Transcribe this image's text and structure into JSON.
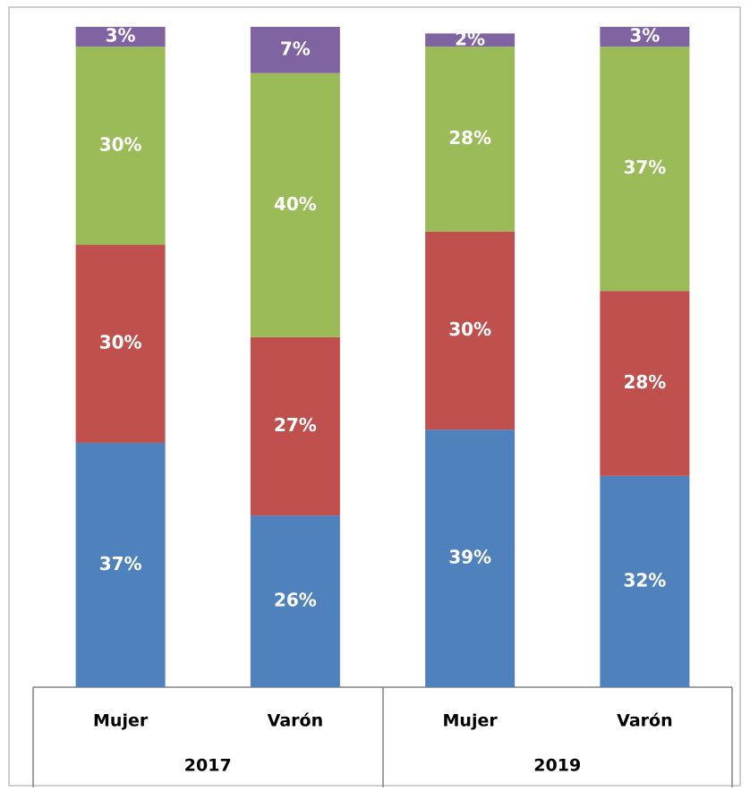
{
  "chart_data": {
    "type": "bar",
    "stacked": true,
    "categories": [
      "Mujer",
      "Varón",
      "Mujer",
      "Varón"
    ],
    "groups": [
      "2017",
      "2019"
    ],
    "ylim": [
      0,
      100
    ],
    "series": [
      {
        "color": "#4f81bd",
        "values": [
          37,
          26,
          39,
          32
        ],
        "value_labels": [
          "37%",
          "26%",
          "39%",
          "32%"
        ]
      },
      {
        "color": "#c0504d",
        "values": [
          30,
          27,
          30,
          28
        ],
        "value_labels": [
          "30%",
          "27%",
          "30%",
          "28%"
        ]
      },
      {
        "color": "#9bbb59",
        "values": [
          30,
          40,
          28,
          37
        ],
        "value_labels": [
          "30%",
          "40%",
          "28%",
          "37%"
        ]
      },
      {
        "color": "#8064a2",
        "values": [
          3,
          7,
          2,
          3
        ],
        "value_labels": [
          "3%",
          "7%",
          "2%",
          "3%"
        ]
      }
    ]
  }
}
